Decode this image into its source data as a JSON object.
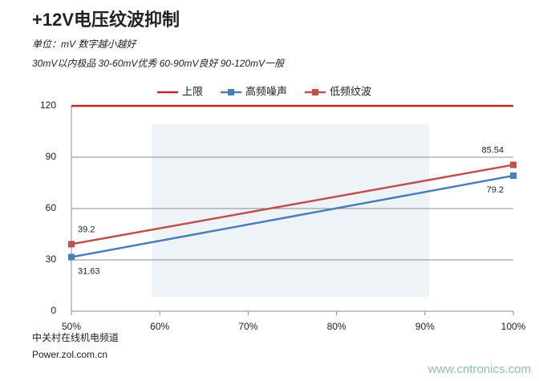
{
  "chart_data": {
    "type": "line",
    "title": "+12V电压纹波抑制",
    "subtitle": [
      "单位：mV  数字越小越好",
      "30mV以内极品  30-60mV优秀  60-90mV良好  90-120mV一般"
    ],
    "x": [
      50,
      100
    ],
    "xlim": [
      50,
      100
    ],
    "xticks": [
      {
        "value": 50,
        "label": "50%"
      },
      {
        "value": 60,
        "label": "60%"
      },
      {
        "value": 70,
        "label": "70%"
      },
      {
        "value": 80,
        "label": "80%"
      },
      {
        "value": 90,
        "label": "90%"
      },
      {
        "value": 100,
        "label": "100%"
      }
    ],
    "ylim": [
      0,
      120
    ],
    "yticks": [
      0,
      30,
      60,
      90,
      120
    ],
    "grid": true,
    "legend": "top",
    "series": [
      {
        "name": "上限",
        "color": "#c0272d",
        "values": [
          120,
          120
        ],
        "marker": "none",
        "data_labels": false
      },
      {
        "name": "高频噪声",
        "color": "#4a7eba",
        "values": [
          31.63,
          79.2
        ],
        "marker": "square",
        "data_labels": true
      },
      {
        "name": "低频纹波",
        "color": "#c0504d",
        "values": [
          39.2,
          85.54
        ],
        "marker": "square",
        "data_labels": true
      }
    ],
    "source": [
      "中关村在线机电频道",
      "Power.zol.com.cn"
    ],
    "watermark": "www.cntronics.com"
  }
}
